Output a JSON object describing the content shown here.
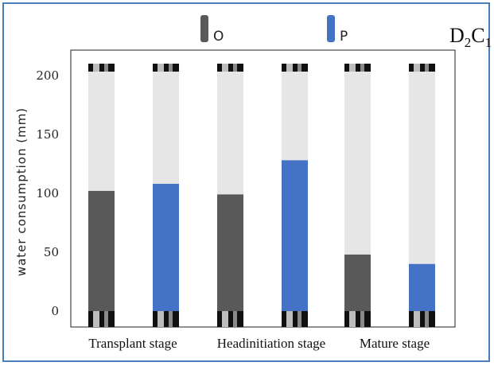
{
  "chart_data": {
    "type": "bar",
    "panel_label": {
      "main": "D",
      "sub1": "2",
      "mid": "C",
      "sub2": "1"
    },
    "ylabel": "water consumption (mm)",
    "ylim": [
      0,
      210
    ],
    "yticks": [
      0,
      50,
      100,
      150,
      200
    ],
    "categories": [
      "Transplant stage",
      "Headinitiation stage",
      "Mature stage"
    ],
    "series": [
      {
        "name": "O",
        "color": "#595959",
        "values": [
          102,
          99,
          48
        ]
      },
      {
        "name": "P",
        "color": "#4472c4",
        "values": [
          108,
          128,
          40
        ]
      }
    ],
    "tube_color": "#e6e6e6",
    "grid": false,
    "legend": "top"
  }
}
